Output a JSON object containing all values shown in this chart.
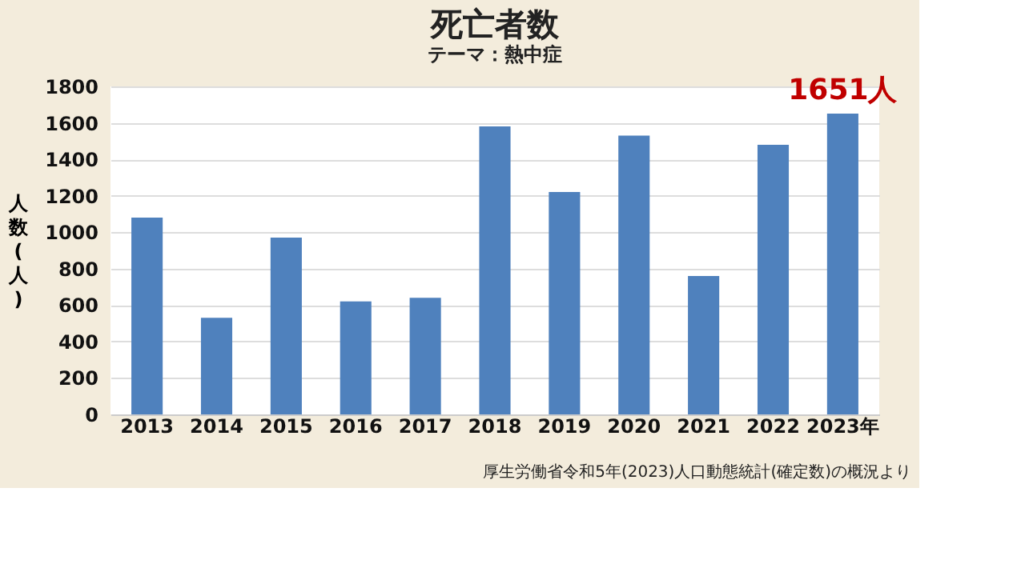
{
  "chart_data": {
    "type": "bar",
    "title": "死亡者数",
    "subtitle": "テーマ：熱中症",
    "ylabel": "人数(人)",
    "categories": [
      "2013",
      "2014",
      "2015",
      "2016",
      "2017",
      "2018",
      "2019",
      "2020",
      "2021",
      "2022",
      "2023年"
    ],
    "values": [
      1080,
      530,
      970,
      620,
      640,
      1580,
      1220,
      1530,
      760,
      1480,
      1651
    ],
    "value_labels": [
      null,
      null,
      null,
      null,
      null,
      null,
      null,
      null,
      null,
      null,
      "1651人"
    ],
    "color": "#4f81bd",
    "ylim": [
      0,
      1800
    ],
    "yticks": [
      0,
      200,
      400,
      600,
      800,
      1000,
      1200,
      1400,
      1600,
      1800
    ],
    "grid": "y",
    "annotations": [
      "厚生労働省令和5年(2023)人口動態統計(確定数)の概況より"
    ]
  }
}
